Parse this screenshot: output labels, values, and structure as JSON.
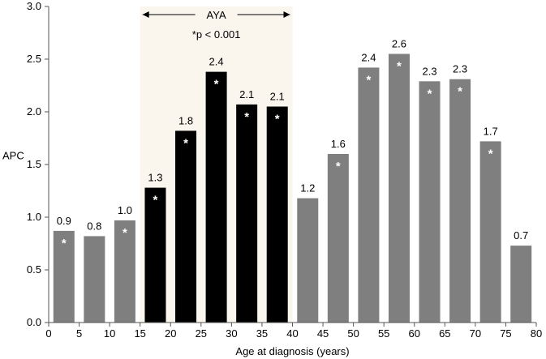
{
  "chart_data": {
    "type": "bar",
    "title": "",
    "xlabel": "Age at diagnosis (years)",
    "ylabel": "APC",
    "xlim": [
      0,
      80
    ],
    "ylim": [
      0,
      3.0
    ],
    "x_ticks": [
      0,
      5,
      10,
      15,
      20,
      25,
      30,
      35,
      40,
      45,
      50,
      55,
      60,
      65,
      70,
      75,
      80
    ],
    "y_ticks": [
      "0.0",
      "0.5",
      "1.0",
      "1.5",
      "2.0",
      "2.5",
      "3.0"
    ],
    "grid": false,
    "bars": [
      {
        "x": 2.5,
        "value": 0.87,
        "label": "0.9",
        "significant": true,
        "group": "other"
      },
      {
        "x": 7.5,
        "value": 0.82,
        "label": "0.8",
        "significant": false,
        "group": "other"
      },
      {
        "x": 12.5,
        "value": 0.97,
        "label": "1.0",
        "significant": true,
        "group": "other"
      },
      {
        "x": 17.5,
        "value": 1.28,
        "label": "1.3",
        "significant": true,
        "group": "AYA"
      },
      {
        "x": 22.5,
        "value": 1.82,
        "label": "1.8",
        "significant": true,
        "group": "AYA"
      },
      {
        "x": 27.5,
        "value": 2.38,
        "label": "2.4",
        "significant": true,
        "group": "AYA"
      },
      {
        "x": 32.5,
        "value": 2.07,
        "label": "2.1",
        "significant": true,
        "group": "AYA"
      },
      {
        "x": 37.5,
        "value": 2.05,
        "label": "2.1",
        "significant": true,
        "group": "AYA"
      },
      {
        "x": 42.5,
        "value": 1.18,
        "label": "1.2",
        "significant": false,
        "group": "other"
      },
      {
        "x": 47.5,
        "value": 1.6,
        "label": "1.6",
        "significant": true,
        "group": "other"
      },
      {
        "x": 52.5,
        "value": 2.42,
        "label": "2.4",
        "significant": true,
        "group": "other"
      },
      {
        "x": 57.5,
        "value": 2.55,
        "label": "2.6",
        "significant": true,
        "group": "other"
      },
      {
        "x": 62.5,
        "value": 2.29,
        "label": "2.3",
        "significant": true,
        "group": "other"
      },
      {
        "x": 67.5,
        "value": 2.31,
        "label": "2.3",
        "significant": true,
        "group": "other"
      },
      {
        "x": 72.5,
        "value": 1.72,
        "label": "1.7",
        "significant": true,
        "group": "other"
      },
      {
        "x": 77.5,
        "value": 0.73,
        "label": "0.7",
        "significant": false,
        "group": "other"
      }
    ],
    "significance_marker": "*",
    "annotations": {
      "aya_label": "AYA",
      "aya_range": [
        15,
        40
      ],
      "pvalue_note": "*p < 0.001"
    },
    "colors": {
      "aya_bar": "#000000",
      "other_bar": "#7f7f7f",
      "aya_band": "#faf6ee",
      "marker": "#ffffff",
      "axis": "#555555"
    }
  }
}
